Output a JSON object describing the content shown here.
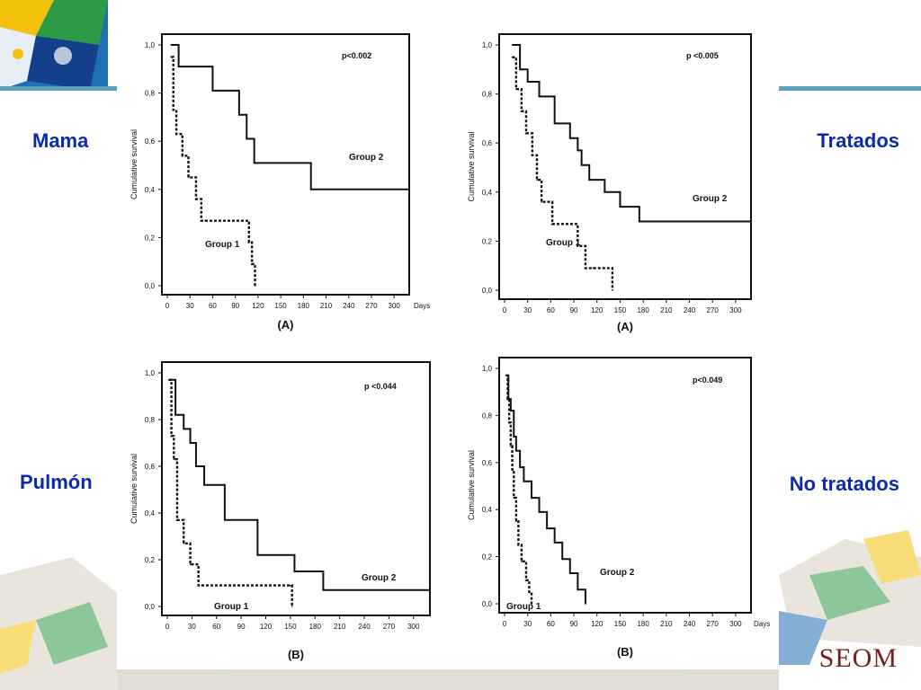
{
  "labels": {
    "mama": "Mama",
    "tratados": "Tratados",
    "pulmon": "Pulmón",
    "no_tratados": "No tratados"
  },
  "brand": "SEOM",
  "colors": {
    "label": "#0b2ca8",
    "brand": "#7a1c1c",
    "line": "#111111"
  },
  "chart_data": [
    {
      "type": "line",
      "id": "mama-tratados",
      "title": "(A)",
      "ylabel": "Cumulative survival",
      "xlabel": "Days",
      "annotation": "p<0.002",
      "xlim": [
        0,
        320
      ],
      "ylim": [
        0,
        1
      ],
      "xticks": [
        0,
        30,
        60,
        90,
        120,
        150,
        180,
        210,
        240,
        270,
        300
      ],
      "yticks": [
        "0,0",
        "0,2",
        "0,4",
        "0,6",
        "0,8",
        "1,0"
      ],
      "series": [
        {
          "name": "Group 1",
          "style": "dashed",
          "x": [
            5,
            8,
            12,
            20,
            28,
            38,
            45,
            50,
            108,
            112,
            116
          ],
          "y": [
            0.95,
            0.73,
            0.63,
            0.54,
            0.45,
            0.36,
            0.27,
            0.27,
            0.18,
            0.09,
            0.0
          ]
        },
        {
          "name": "Group 2",
          "style": "solid",
          "x": [
            5,
            15,
            60,
            95,
            105,
            115,
            140,
            190,
            320
          ],
          "y": [
            1.0,
            0.91,
            0.81,
            0.71,
            0.61,
            0.51,
            0.51,
            0.4,
            0.4
          ]
        }
      ]
    },
    {
      "type": "line",
      "id": "mama-no-tratados",
      "title": "(A)",
      "ylabel": "Cumulative survival",
      "xlabel": "",
      "annotation": "p <0.005",
      "xlim": [
        0,
        320
      ],
      "ylim": [
        0,
        1
      ],
      "xticks": [
        0,
        30,
        60,
        90,
        120,
        150,
        180,
        210,
        240,
        270,
        300
      ],
      "yticks": [
        "0,0",
        "0,2",
        "0,4",
        "0,6",
        "0,8",
        "1,0"
      ],
      "series": [
        {
          "name": "Group 1",
          "style": "dashed",
          "x": [
            10,
            15,
            22,
            28,
            36,
            42,
            48,
            62,
            95,
            105,
            115,
            140
          ],
          "y": [
            0.95,
            0.82,
            0.73,
            0.64,
            0.55,
            0.45,
            0.36,
            0.27,
            0.18,
            0.09,
            0.09,
            0.0
          ]
        },
        {
          "name": "Group 2",
          "style": "solid",
          "x": [
            10,
            20,
            30,
            45,
            65,
            85,
            95,
            100,
            110,
            130,
            150,
            175,
            190,
            320
          ],
          "y": [
            1.0,
            0.9,
            0.85,
            0.79,
            0.68,
            0.62,
            0.57,
            0.51,
            0.45,
            0.4,
            0.34,
            0.28,
            0.28,
            0.28
          ]
        }
      ]
    },
    {
      "type": "line",
      "id": "pulmon-tratados",
      "title": "(B)",
      "ylabel": "Cumulative survival",
      "xlabel": "",
      "annotation": "p <0.044",
      "xlim": [
        0,
        320
      ],
      "ylim": [
        0,
        1
      ],
      "xticks": [
        0,
        30,
        60,
        90,
        120,
        150,
        180,
        210,
        240,
        270,
        300
      ],
      "yticks": [
        "0,0",
        "0,2",
        "0,4",
        "0,6",
        "0,8",
        "1,0"
      ],
      "series": [
        {
          "name": "Group 1",
          "style": "dashed",
          "x": [
            2,
            5,
            8,
            12,
            20,
            28,
            38,
            42,
            150,
            152
          ],
          "y": [
            0.97,
            0.73,
            0.63,
            0.37,
            0.27,
            0.18,
            0.09,
            0.09,
            0.09,
            0.0
          ]
        },
        {
          "name": "Group 2",
          "style": "solid",
          "x": [
            2,
            10,
            20,
            28,
            35,
            45,
            70,
            100,
            110,
            155,
            190,
            320
          ],
          "y": [
            0.97,
            0.82,
            0.76,
            0.7,
            0.6,
            0.52,
            0.37,
            0.37,
            0.22,
            0.15,
            0.07,
            0.07
          ]
        }
      ]
    },
    {
      "type": "line",
      "id": "pulmon-no-tratados",
      "title": "(B)",
      "ylabel": "Cumulative survival",
      "xlabel": "Days",
      "annotation": "p<0.049",
      "xlim": [
        0,
        320
      ],
      "ylim": [
        0,
        1
      ],
      "xticks": [
        0,
        30,
        60,
        90,
        120,
        150,
        180,
        210,
        240,
        270,
        300
      ],
      "yticks": [
        "0,0",
        "0,2",
        "0,4",
        "0,6",
        "0,8",
        "1,0"
      ],
      "series": [
        {
          "name": "Group 1",
          "style": "dashed",
          "x": [
            2,
            4,
            6,
            8,
            10,
            12,
            15,
            18,
            22,
            28,
            32,
            35
          ],
          "y": [
            0.97,
            0.87,
            0.77,
            0.67,
            0.57,
            0.45,
            0.35,
            0.25,
            0.18,
            0.1,
            0.05,
            0.0
          ]
        },
        {
          "name": "Group 2",
          "style": "solid",
          "x": [
            2,
            5,
            8,
            12,
            15,
            20,
            25,
            35,
            45,
            55,
            65,
            75,
            85,
            95,
            105
          ],
          "y": [
            0.97,
            0.87,
            0.82,
            0.71,
            0.65,
            0.58,
            0.52,
            0.45,
            0.39,
            0.32,
            0.26,
            0.19,
            0.13,
            0.06,
            0.0
          ]
        }
      ]
    }
  ]
}
